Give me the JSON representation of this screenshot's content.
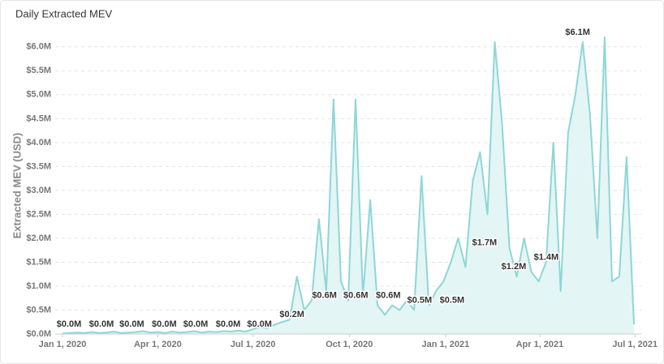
{
  "chart_data": {
    "type": "area",
    "title": "Daily Extracted MEV",
    "ylabel": "Extracted MEV (USD)",
    "color": "#8fd6d6",
    "fill_color": "#e3f5f5",
    "grid": true,
    "xlim": [
      "2019-12-25",
      "2021-07-07"
    ],
    "xticks": [
      {
        "value": "2020-01-01",
        "label": "Jan 1, 2020"
      },
      {
        "value": "2020-04-01",
        "label": "Apr 1, 2020"
      },
      {
        "value": "2020-07-01",
        "label": "Jul 1, 2020"
      },
      {
        "value": "2020-10-01",
        "label": "Oct 1, 2020"
      },
      {
        "value": "2021-01-01",
        "label": "Jan 1, 2021"
      },
      {
        "value": "2021-04-01",
        "label": "Apr 1, 2021"
      },
      {
        "value": "2021-07-01",
        "label": "Jul 1, 2021"
      }
    ],
    "ylim": [
      0,
      6.2
    ],
    "yticks": [
      {
        "value": 0,
        "label": "$0.0M"
      },
      {
        "value": 0.5,
        "label": "$0.5M"
      },
      {
        "value": 1,
        "label": "$1.0M"
      },
      {
        "value": 1.5,
        "label": "$1.5M"
      },
      {
        "value": 2,
        "label": "$2.0M"
      },
      {
        "value": 2.5,
        "label": "$2.5M"
      },
      {
        "value": 3,
        "label": "$3.0M"
      },
      {
        "value": 3.5,
        "label": "$3.5M"
      },
      {
        "value": 4,
        "label": "$4.0M"
      },
      {
        "value": 4.5,
        "label": "$4.5M"
      },
      {
        "value": 5,
        "label": "$5.0M"
      },
      {
        "value": 5.5,
        "label": "$5.5M"
      },
      {
        "value": 6,
        "label": "$6.0M"
      }
    ],
    "x": [
      "2020-01-01",
      "2020-01-08",
      "2020-01-15",
      "2020-01-22",
      "2020-01-29",
      "2020-02-05",
      "2020-02-12",
      "2020-02-19",
      "2020-02-26",
      "2020-03-04",
      "2020-03-11",
      "2020-03-18",
      "2020-03-25",
      "2020-04-01",
      "2020-04-08",
      "2020-04-15",
      "2020-04-22",
      "2020-04-29",
      "2020-05-06",
      "2020-05-13",
      "2020-05-20",
      "2020-05-27",
      "2020-06-03",
      "2020-06-10",
      "2020-06-17",
      "2020-06-24",
      "2020-07-01",
      "2020-07-08",
      "2020-07-15",
      "2020-07-22",
      "2020-07-29",
      "2020-08-05",
      "2020-08-12",
      "2020-08-19",
      "2020-08-26",
      "2020-09-02",
      "2020-09-09",
      "2020-09-16",
      "2020-09-23",
      "2020-09-30",
      "2020-10-07",
      "2020-10-14",
      "2020-10-21",
      "2020-10-28",
      "2020-11-04",
      "2020-11-11",
      "2020-11-18",
      "2020-11-25",
      "2020-12-02",
      "2020-12-09",
      "2020-12-16",
      "2020-12-23",
      "2020-12-30",
      "2021-01-06",
      "2021-01-13",
      "2021-01-20",
      "2021-01-27",
      "2021-02-03",
      "2021-02-10",
      "2021-02-17",
      "2021-02-24",
      "2021-03-03",
      "2021-03-10",
      "2021-03-17",
      "2021-03-24",
      "2021-03-31",
      "2021-04-07",
      "2021-04-14",
      "2021-04-21",
      "2021-04-28",
      "2021-05-05",
      "2021-05-12",
      "2021-05-19",
      "2021-05-26",
      "2021-06-02",
      "2021-06-09",
      "2021-06-16",
      "2021-06-23",
      "2021-06-30"
    ],
    "values": [
      0.01,
      0.02,
      0.03,
      0.02,
      0.04,
      0.02,
      0.03,
      0.05,
      0.02,
      0.03,
      0.04,
      0.06,
      0.03,
      0.04,
      0.02,
      0.05,
      0.03,
      0.04,
      0.06,
      0.03,
      0.05,
      0.04,
      0.06,
      0.05,
      0.07,
      0.05,
      0.1,
      0.15,
      0.12,
      0.2,
      0.25,
      0.3,
      1.2,
      0.5,
      0.7,
      2.4,
      0.9,
      4.9,
      1.1,
      0.7,
      4.9,
      0.8,
      2.8,
      0.6,
      0.4,
      0.6,
      0.5,
      0.7,
      0.5,
      3.3,
      0.6,
      0.9,
      1.1,
      1.5,
      2.0,
      1.4,
      3.2,
      3.8,
      2.5,
      6.1,
      4.4,
      1.8,
      1.2,
      2.0,
      1.3,
      1.1,
      1.5,
      4.0,
      0.9,
      4.2,
      5.0,
      6.1,
      4.6,
      2.0,
      6.2,
      1.1,
      1.2,
      3.7,
      0.2
    ],
    "annotations": {
      "x": [
        "2020-01-01",
        "2020-02-01",
        "2020-03-01",
        "2020-04-01",
        "2020-05-01",
        "2020-06-01",
        "2020-07-01",
        "2020-08-01",
        "2020-09-01",
        "2020-10-01",
        "2020-11-01",
        "2020-12-01",
        "2021-01-01",
        "2021-02-01",
        "2021-03-01",
        "2021-04-01",
        "2021-05-01"
      ],
      "values": [
        0,
        0,
        0,
        0,
        0,
        0,
        0,
        0.2,
        0.6,
        0.6,
        0.6,
        0.5,
        0.5,
        1.7,
        1.2,
        1.4,
        6.1
      ],
      "value_labels": [
        "$0.0M",
        "$0.0M",
        "$0.0M",
        "$0.0M",
        "$0.0M",
        "$0.0M",
        "$0.0M",
        "$0.2M",
        "$0.6M",
        "$0.6M",
        "$0.6M",
        "$0.5M",
        "$0.5M",
        "$1.7M",
        "$1.2M",
        "$1.4M",
        "$6.1M"
      ]
    }
  }
}
